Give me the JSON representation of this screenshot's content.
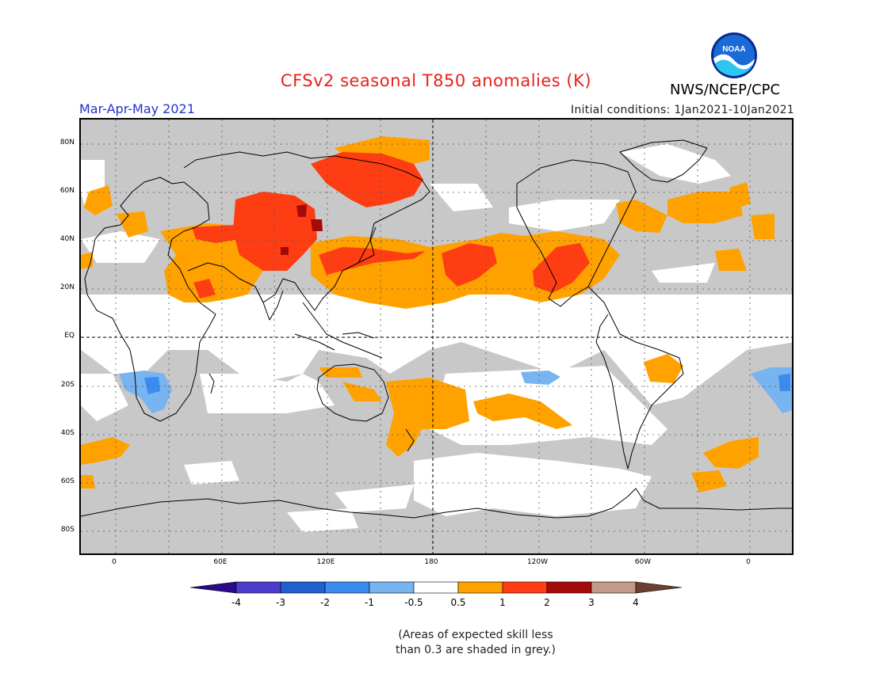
{
  "header": {
    "title": "CFSv2 seasonal T850 anomalies (K)",
    "agency": "NWS/NCEP/CPC",
    "period": "Mar-Apr-May 2021",
    "initial_conditions": "Initial conditions: 1Jan2021-10Jan2021"
  },
  "logo": {
    "icon": "noaa-logo-icon",
    "text": "NOAA"
  },
  "map": {
    "lat_labels": [
      "80N",
      "60N",
      "40N",
      "20N",
      "EQ",
      "20S",
      "40S",
      "60S",
      "80S"
    ],
    "lon_labels": [
      "0",
      "60E",
      "120E",
      "180",
      "120W",
      "60W",
      "0"
    ],
    "colors": {
      "skill_mask": "#c8c8c8",
      "neutral": "#ffffff",
      "warm_05_1": "#ffa200",
      "warm_1_2": "#ff3d12",
      "warm_2_3": "#a50a0a",
      "cool_neg05_neg1": "#78b4f0",
      "cool_neg1_neg2": "#3a8cf0"
    }
  },
  "colorbar": {
    "ticks": [
      "-4",
      "-3",
      "-2",
      "-1",
      "-0.5",
      "0.5",
      "1",
      "2",
      "3",
      "4"
    ],
    "colors": [
      "#2a0a8a",
      "#4d3ccc",
      "#1f5fd0",
      "#3a8cf0",
      "#78b4f0",
      "#ffffff",
      "#ffa200",
      "#ff3d12",
      "#a50a0a",
      "#c39a8a",
      "#6a4030"
    ]
  },
  "note": {
    "line1": "(Areas of expected skill less",
    "line2": "than 0.3 are shaded in grey.)"
  }
}
